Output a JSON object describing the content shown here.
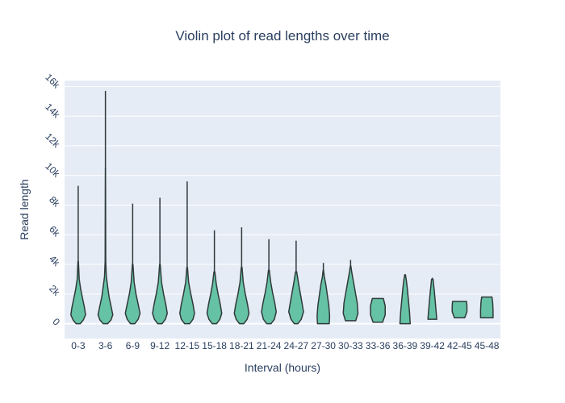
{
  "chart_data": {
    "type": "violin",
    "title": "Violin plot of read lengths over time",
    "xlabel": "Interval (hours)",
    "ylabel": "Read length",
    "ylim": [
      -1000,
      16400
    ],
    "yticks": [
      0,
      2000,
      4000,
      6000,
      8000,
      10000,
      12000,
      14000,
      16000
    ],
    "ytick_labels": [
      "0",
      "2k",
      "4k",
      "6k",
      "8k",
      "10k",
      "12k",
      "14k",
      "16k"
    ],
    "grid": true,
    "fill_color": "#66c2a5",
    "plot_bg": "#e5ecf6",
    "categories": [
      "0-3",
      "3-6",
      "6-9",
      "9-12",
      "12-15",
      "15-18",
      "18-21",
      "21-24",
      "24-27",
      "27-30",
      "30-33",
      "33-36",
      "36-39",
      "39-42",
      "42-45",
      "45-48"
    ],
    "violins": [
      {
        "category": "0-3",
        "min": 0,
        "max": 9300,
        "profile": [
          [
            0,
            0.28
          ],
          [
            250,
            0.7
          ],
          [
            600,
            1.0
          ],
          [
            1100,
            0.85
          ],
          [
            1700,
            0.6
          ],
          [
            2300,
            0.35
          ],
          [
            3000,
            0.14
          ],
          [
            4200,
            0.03
          ]
        ]
      },
      {
        "category": "3-6",
        "min": 0,
        "max": 15700,
        "profile": [
          [
            0,
            0.3
          ],
          [
            250,
            0.75
          ],
          [
            600,
            1.0
          ],
          [
            1100,
            0.8
          ],
          [
            1800,
            0.5
          ],
          [
            2500,
            0.3
          ],
          [
            3200,
            0.12
          ],
          [
            4200,
            0.04
          ],
          [
            10500,
            0.01
          ]
        ]
      },
      {
        "category": "6-9",
        "min": 0,
        "max": 8100,
        "profile": [
          [
            0,
            0.3
          ],
          [
            300,
            0.75
          ],
          [
            700,
            1.0
          ],
          [
            1300,
            0.75
          ],
          [
            2000,
            0.45
          ],
          [
            2800,
            0.2
          ],
          [
            4000,
            0.04
          ]
        ]
      },
      {
        "category": "9-12",
        "min": 0,
        "max": 8500,
        "profile": [
          [
            0,
            0.3
          ],
          [
            300,
            0.75
          ],
          [
            700,
            1.0
          ],
          [
            1300,
            0.8
          ],
          [
            2000,
            0.5
          ],
          [
            2800,
            0.22
          ],
          [
            4000,
            0.04
          ]
        ]
      },
      {
        "category": "12-15",
        "min": 0,
        "max": 9600,
        "profile": [
          [
            0,
            0.35
          ],
          [
            300,
            0.8
          ],
          [
            700,
            1.0
          ],
          [
            1300,
            0.8
          ],
          [
            2000,
            0.5
          ],
          [
            2800,
            0.2
          ],
          [
            3800,
            0.04
          ]
        ]
      },
      {
        "category": "15-18",
        "min": 0,
        "max": 6300,
        "profile": [
          [
            0,
            0.3
          ],
          [
            300,
            0.75
          ],
          [
            700,
            1.0
          ],
          [
            1300,
            0.8
          ],
          [
            2000,
            0.5
          ],
          [
            2700,
            0.25
          ],
          [
            3500,
            0.06
          ]
        ]
      },
      {
        "category": "18-21",
        "min": 0,
        "max": 6500,
        "profile": [
          [
            0,
            0.3
          ],
          [
            300,
            0.75
          ],
          [
            700,
            1.0
          ],
          [
            1300,
            0.8
          ],
          [
            2000,
            0.5
          ],
          [
            2800,
            0.22
          ],
          [
            3800,
            0.05
          ]
        ]
      },
      {
        "category": "21-24",
        "min": 0,
        "max": 5700,
        "profile": [
          [
            0,
            0.3
          ],
          [
            300,
            0.75
          ],
          [
            800,
            1.0
          ],
          [
            1400,
            0.8
          ],
          [
            2100,
            0.5
          ],
          [
            2800,
            0.25
          ],
          [
            3600,
            0.06
          ]
        ]
      },
      {
        "category": "24-27",
        "min": 0,
        "max": 5600,
        "profile": [
          [
            0,
            0.25
          ],
          [
            300,
            0.7
          ],
          [
            800,
            1.0
          ],
          [
            1400,
            0.8
          ],
          [
            2100,
            0.55
          ],
          [
            2800,
            0.3
          ],
          [
            3500,
            0.08
          ]
        ]
      },
      {
        "category": "27-30",
        "min": 0,
        "max": 4100,
        "profile": [
          [
            0,
            0.8
          ],
          [
            500,
            0.85
          ],
          [
            1200,
            0.75
          ],
          [
            1900,
            0.55
          ],
          [
            2600,
            0.35
          ],
          [
            3200,
            0.12
          ],
          [
            3600,
            0.03
          ]
        ]
      },
      {
        "category": "30-33",
        "min": 200,
        "max": 4300,
        "profile": [
          [
            200,
            0.7
          ],
          [
            700,
            1.0
          ],
          [
            1400,
            0.9
          ],
          [
            2100,
            0.65
          ],
          [
            2800,
            0.4
          ],
          [
            3500,
            0.15
          ],
          [
            3900,
            0.03
          ]
        ]
      },
      {
        "category": "33-36",
        "min": 100,
        "max": 1700,
        "profile": [
          [
            100,
            0.65
          ],
          [
            600,
            1.0
          ],
          [
            1200,
            1.0
          ],
          [
            1700,
            0.75
          ]
        ]
      },
      {
        "category": "36-39",
        "min": 0,
        "max": 3300,
        "profile": [
          [
            0,
            0.7
          ],
          [
            800,
            0.6
          ],
          [
            1600,
            0.45
          ],
          [
            2400,
            0.3
          ],
          [
            3000,
            0.15
          ],
          [
            3300,
            0.05
          ]
        ]
      },
      {
        "category": "39-42",
        "min": 300,
        "max": 3100,
        "profile": [
          [
            300,
            0.6
          ],
          [
            900,
            0.5
          ],
          [
            1600,
            0.38
          ],
          [
            2300,
            0.25
          ],
          [
            3000,
            0.1
          ]
        ]
      },
      {
        "category": "42-45",
        "min": 400,
        "max": 1500,
        "profile": [
          [
            400,
            0.7
          ],
          [
            800,
            1.0
          ],
          [
            1200,
            1.0
          ],
          [
            1500,
            0.95
          ]
        ]
      },
      {
        "category": "45-48",
        "min": 400,
        "max": 1800,
        "profile": [
          [
            400,
            0.85
          ],
          [
            900,
            0.85
          ],
          [
            1400,
            0.8
          ],
          [
            1800,
            0.7
          ]
        ]
      }
    ]
  }
}
